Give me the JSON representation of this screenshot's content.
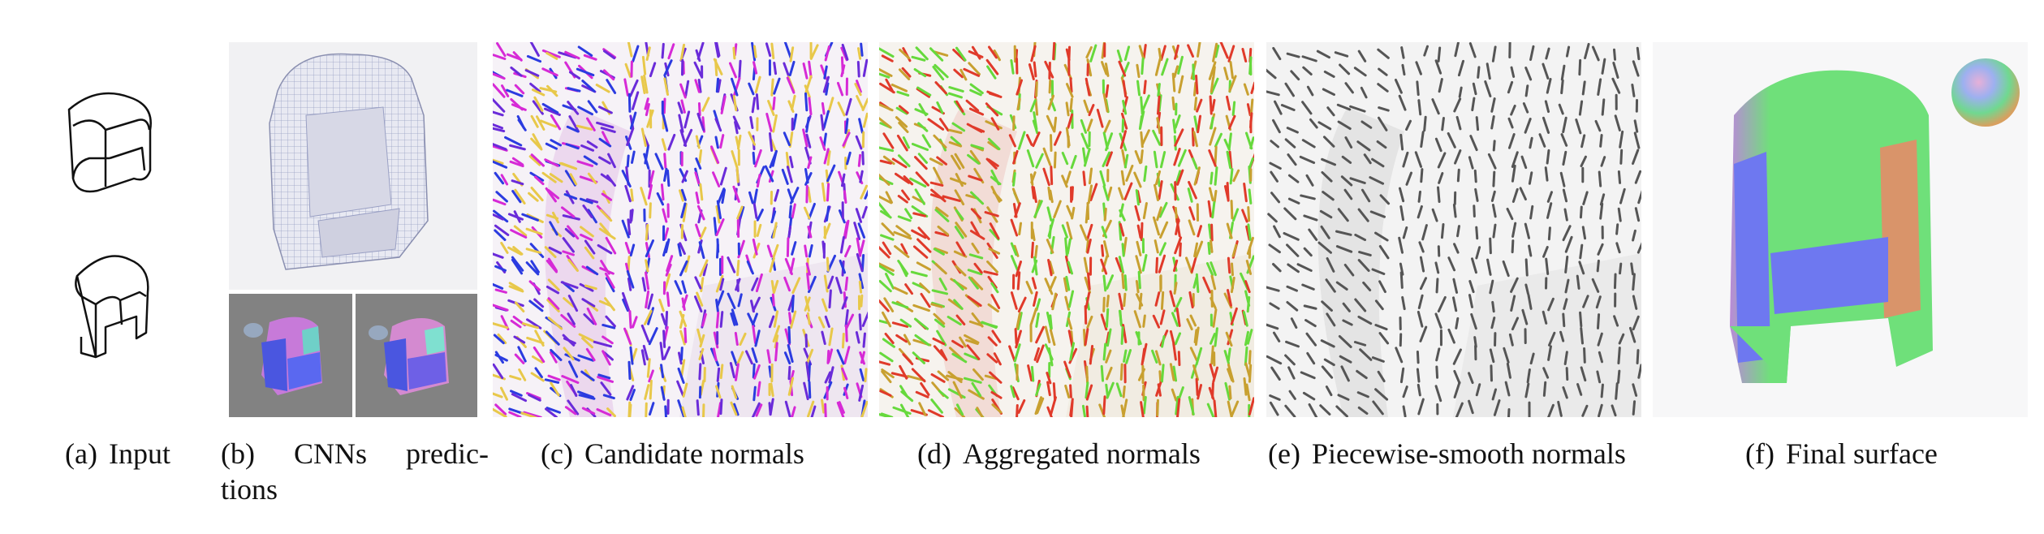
{
  "figure": {
    "captions": {
      "a": {
        "label": "(a)",
        "text": "Input"
      },
      "b": {
        "label": "(b)",
        "text": "CNNs predictions"
      },
      "c": {
        "label": "(c)",
        "text": "Candidate normals"
      },
      "d": {
        "label": "(d)",
        "text": "Aggregated normals"
      },
      "e": {
        "label": "(e)",
        "text": "Piecewise-smooth normals"
      },
      "f": {
        "label": "(f)",
        "text": "Final surface"
      }
    },
    "caption_b_lines": [
      "CNNs predic-",
      "tions"
    ]
  },
  "colors": {
    "candidate": [
      "#6a2bd9",
      "#d62ad6",
      "#2b3be0",
      "#e8c84a"
    ],
    "aggregated": [
      "#e03a2a",
      "#66d93c",
      "#c8a030"
    ],
    "smooth": [
      "#555555"
    ],
    "surface_green": "#6fe07a",
    "surface_blue": "#6e78f0",
    "surface_orange": "#d9946a",
    "surface_magenta": "#c79ae8"
  }
}
